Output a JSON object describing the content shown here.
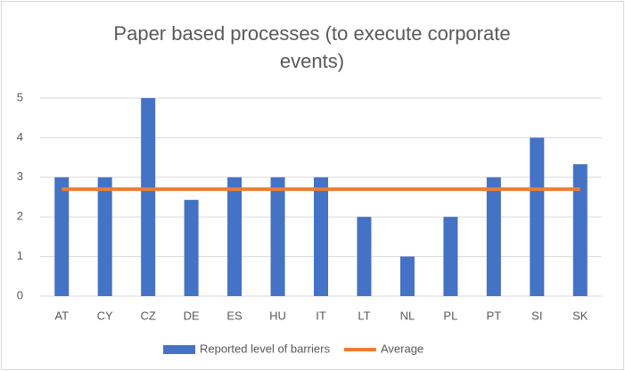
{
  "chart_data": {
    "type": "bar",
    "title": "Paper based processes (to execute corporate events)",
    "categories": [
      "AT",
      "CY",
      "CZ",
      "DE",
      "ES",
      "HU",
      "IT",
      "LT",
      "NL",
      "PL",
      "PT",
      "SI",
      "SK"
    ],
    "series": [
      {
        "name": "Reported level of barriers",
        "type": "bar",
        "color": "#4472c4",
        "values": [
          3,
          3,
          5,
          2.43,
          3,
          3,
          3,
          2,
          1,
          2,
          3,
          4,
          3.33
        ]
      },
      {
        "name": "Average",
        "type": "line",
        "color": "#ed7d31",
        "values": [
          2.7,
          2.7,
          2.7,
          2.7,
          2.7,
          2.7,
          2.7,
          2.7,
          2.7,
          2.7,
          2.7,
          2.7,
          2.7
        ]
      }
    ],
    "ylim": [
      0,
      5
    ],
    "yticks": [
      0,
      1,
      2,
      3,
      4,
      5
    ],
    "grid": true,
    "legend": "bottom"
  }
}
